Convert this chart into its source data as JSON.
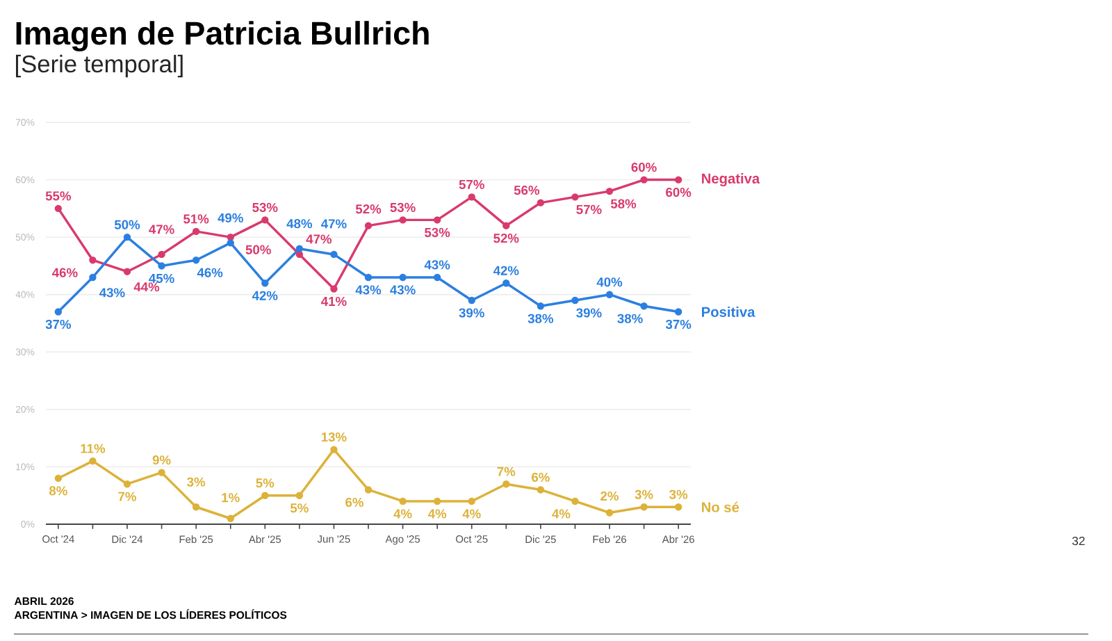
{
  "chart_data": {
    "type": "line",
    "title": "Imagen de Patricia Bullrich",
    "subtitle": "[Serie temporal]",
    "categories": [
      "Oct '24",
      null,
      "Dic '24",
      null,
      "Feb '25",
      null,
      "Abr '25",
      null,
      "Jun '25",
      null,
      "Ago '25",
      null,
      "Oct '25",
      null,
      "Dic '25",
      null,
      "Feb '26",
      null,
      "Abr '26"
    ],
    "series": [
      {
        "name": "Negativa",
        "color": "#d93a6c",
        "values": [
          55,
          46,
          44,
          47,
          51,
          50,
          53,
          47,
          41,
          52,
          53,
          53,
          57,
          52,
          56,
          57,
          58,
          60,
          60
        ],
        "value_labels": [
          "55%",
          "46%",
          "44%",
          "47%",
          "51%",
          "50%",
          "53%",
          "47%",
          "41%",
          "52%",
          "53%",
          "53%",
          "57%",
          "52%",
          "56%",
          "57%",
          "58%",
          "60%",
          "60%"
        ]
      },
      {
        "name": "Positiva",
        "color": "#2b7fe0",
        "values": [
          37,
          43,
          50,
          45,
          46,
          49,
          42,
          48,
          47,
          43,
          43,
          43,
          39,
          42,
          38,
          39,
          40,
          38,
          37
        ],
        "value_labels": [
          "37%",
          "43%",
          "50%",
          "45%",
          "46%",
          "49%",
          "42%",
          "48%",
          "47%",
          "43%",
          "43%",
          "43%",
          "39%",
          "42%",
          "38%",
          "39%",
          "40%",
          "38%",
          "37%"
        ]
      },
      {
        "name": "No sé",
        "color": "#dcb239",
        "values": [
          8,
          11,
          7,
          9,
          3,
          1,
          5,
          5,
          13,
          6,
          4,
          4,
          4,
          7,
          6,
          4,
          2,
          3,
          3
        ],
        "value_labels": [
          "8%",
          "11%",
          "7%",
          "9%",
          "3%",
          "1%",
          "5%",
          "5%",
          "13%",
          "6%",
          "4%",
          "4%",
          "4%",
          "7%",
          "6%",
          "4%",
          "2%",
          "3%",
          "3%"
        ]
      }
    ],
    "ylim": [
      0,
      70
    ],
    "yticks": [
      {
        "value": 0,
        "label": "0%"
      },
      {
        "value": 10,
        "label": "10%"
      },
      {
        "value": 20,
        "label": "20%"
      },
      {
        "value": 30,
        "label": "30%"
      },
      {
        "value": 40,
        "label": "40%"
      },
      {
        "value": 50,
        "label": "50%"
      },
      {
        "value": 60,
        "label": "60%"
      },
      {
        "value": 70,
        "label": "70%"
      }
    ],
    "grid": "y",
    "marker": "circle",
    "line_style": "solid",
    "annotations": [
      "32",
      "ABRIL 2026",
      "ARGENTINA > IMAGEN DE LOS LÍDERES POLÍTICOS"
    ]
  }
}
